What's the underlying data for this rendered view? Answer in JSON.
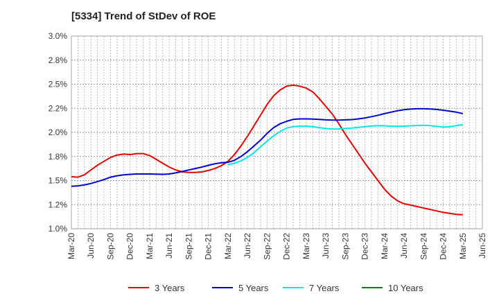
{
  "chart_data": {
    "type": "line",
    "title": "[5334]  Trend of StDev of ROE",
    "x_ticks": [
      "Mar-20",
      "Jun-20",
      "Sep-20",
      "Dec-20",
      "Mar-21",
      "Jun-21",
      "Sep-21",
      "Dec-21",
      "Mar-22",
      "Jun-22",
      "Sep-22",
      "Dec-22",
      "Mar-23",
      "Jun-23",
      "Sep-23",
      "Dec-23",
      "Mar-24",
      "Jun-24",
      "Sep-24",
      "Dec-24",
      "Mar-25",
      "Jun-25"
    ],
    "y_ticks": [
      "1.0%",
      "1.2%",
      "1.5%",
      "1.8%",
      "2.0%",
      "2.2%",
      "2.5%",
      "2.8%",
      "3.0%"
    ],
    "ylim": [
      1.0,
      3.0
    ],
    "grid": true,
    "legend_position": "bottom",
    "series": [
      {
        "name": "3 Years",
        "color": "#e60000",
        "points": [
          [
            "Mar-20",
            1.54
          ],
          [
            "Apr-20",
            1.535
          ],
          [
            "May-20",
            1.56
          ],
          [
            "Jun-20",
            1.61
          ],
          [
            "Jul-20",
            1.66
          ],
          [
            "Aug-20",
            1.7
          ],
          [
            "Sep-20",
            1.74
          ],
          [
            "Oct-20",
            1.765
          ],
          [
            "Nov-20",
            1.775
          ],
          [
            "Dec-20",
            1.77
          ],
          [
            "Jan-21",
            1.78
          ],
          [
            "Feb-21",
            1.78
          ],
          [
            "Mar-21",
            1.76
          ],
          [
            "Apr-21",
            1.72
          ],
          [
            "May-21",
            1.68
          ],
          [
            "Jun-21",
            1.64
          ],
          [
            "Jul-21",
            1.61
          ],
          [
            "Aug-21",
            1.59
          ],
          [
            "Sep-21",
            1.585
          ],
          [
            "Oct-21",
            1.585
          ],
          [
            "Nov-21",
            1.59
          ],
          [
            "Dec-21",
            1.605
          ],
          [
            "Jan-22",
            1.625
          ],
          [
            "Feb-22",
            1.655
          ],
          [
            "Mar-22",
            1.7
          ],
          [
            "Apr-22",
            1.77
          ],
          [
            "May-22",
            1.86
          ],
          [
            "Jun-22",
            1.96
          ],
          [
            "Jul-22",
            2.07
          ],
          [
            "Aug-22",
            2.18
          ],
          [
            "Sep-22",
            2.29
          ],
          [
            "Oct-22",
            2.38
          ],
          [
            "Nov-22",
            2.44
          ],
          [
            "Dec-22",
            2.48
          ],
          [
            "Jan-23",
            2.49
          ],
          [
            "Feb-23",
            2.48
          ],
          [
            "Mar-23",
            2.46
          ],
          [
            "Apr-23",
            2.42
          ],
          [
            "May-23",
            2.35
          ],
          [
            "Jun-23",
            2.27
          ],
          [
            "Jul-23",
            2.19
          ],
          [
            "Aug-23",
            2.09
          ],
          [
            "Sep-23",
            1.98
          ],
          [
            "Oct-23",
            1.88
          ],
          [
            "Nov-23",
            1.78
          ],
          [
            "Dec-23",
            1.68
          ],
          [
            "Jan-24",
            1.59
          ],
          [
            "Feb-24",
            1.5
          ],
          [
            "Mar-24",
            1.41
          ],
          [
            "Apr-24",
            1.34
          ],
          [
            "May-24",
            1.29
          ],
          [
            "Jun-24",
            1.26
          ],
          [
            "Jul-24",
            1.245
          ],
          [
            "Aug-24",
            1.23
          ],
          [
            "Sep-24",
            1.215
          ],
          [
            "Oct-24",
            1.2
          ],
          [
            "Nov-24",
            1.185
          ],
          [
            "Dec-24",
            1.17
          ],
          [
            "Jan-25",
            1.16
          ],
          [
            "Feb-25",
            1.15
          ],
          [
            "Mar-25",
            1.145
          ]
        ]
      },
      {
        "name": "5 Years",
        "color": "#0000cc",
        "points": [
          [
            "Mar-20",
            1.44
          ],
          [
            "Apr-20",
            1.445
          ],
          [
            "May-20",
            1.455
          ],
          [
            "Jun-20",
            1.47
          ],
          [
            "Jul-20",
            1.49
          ],
          [
            "Aug-20",
            1.51
          ],
          [
            "Sep-20",
            1.535
          ],
          [
            "Oct-20",
            1.55
          ],
          [
            "Nov-20",
            1.56
          ],
          [
            "Dec-20",
            1.565
          ],
          [
            "Jan-21",
            1.568
          ],
          [
            "Feb-21",
            1.568
          ],
          [
            "Mar-21",
            1.568
          ],
          [
            "Apr-21",
            1.566
          ],
          [
            "May-21",
            1.565
          ],
          [
            "Jun-21",
            1.568
          ],
          [
            "Jul-21",
            1.58
          ],
          [
            "Aug-21",
            1.595
          ],
          [
            "Sep-21",
            1.61
          ],
          [
            "Oct-21",
            1.625
          ],
          [
            "Nov-21",
            1.64
          ],
          [
            "Dec-21",
            1.658
          ],
          [
            "Jan-22",
            1.675
          ],
          [
            "Feb-22",
            1.685
          ],
          [
            "Mar-22",
            1.69
          ],
          [
            "Apr-22",
            1.71
          ],
          [
            "May-22",
            1.75
          ],
          [
            "Jun-22",
            1.8
          ],
          [
            "Jul-22",
            1.86
          ],
          [
            "Aug-22",
            1.92
          ],
          [
            "Sep-22",
            1.99
          ],
          [
            "Oct-22",
            2.05
          ],
          [
            "Nov-22",
            2.09
          ],
          [
            "Dec-22",
            2.115
          ],
          [
            "Jan-23",
            2.135
          ],
          [
            "Feb-23",
            2.14
          ],
          [
            "Mar-23",
            2.14
          ],
          [
            "Apr-23",
            2.138
          ],
          [
            "May-23",
            2.135
          ],
          [
            "Jun-23",
            2.13
          ],
          [
            "Jul-23",
            2.128
          ],
          [
            "Aug-23",
            2.128
          ],
          [
            "Sep-23",
            2.13
          ],
          [
            "Oct-23",
            2.133
          ],
          [
            "Nov-23",
            2.14
          ],
          [
            "Dec-23",
            2.15
          ],
          [
            "Jan-24",
            2.163
          ],
          [
            "Feb-24",
            2.178
          ],
          [
            "Mar-24",
            2.195
          ],
          [
            "Apr-24",
            2.21
          ],
          [
            "May-24",
            2.225
          ],
          [
            "Jun-24",
            2.235
          ],
          [
            "Jul-24",
            2.242
          ],
          [
            "Aug-24",
            2.245
          ],
          [
            "Sep-24",
            2.245
          ],
          [
            "Oct-24",
            2.243
          ],
          [
            "Nov-24",
            2.238
          ],
          [
            "Dec-24",
            2.23
          ],
          [
            "Jan-25",
            2.22
          ],
          [
            "Feb-25",
            2.21
          ],
          [
            "Mar-25",
            2.195
          ]
        ]
      },
      {
        "name": "7 Years",
        "color": "#00e5e5",
        "points": [
          [
            "Mar-22",
            1.665
          ],
          [
            "Apr-22",
            1.68
          ],
          [
            "May-22",
            1.705
          ],
          [
            "Jun-22",
            1.74
          ],
          [
            "Jul-22",
            1.79
          ],
          [
            "Aug-22",
            1.85
          ],
          [
            "Sep-22",
            1.91
          ],
          [
            "Oct-22",
            1.965
          ],
          [
            "Nov-22",
            2.01
          ],
          [
            "Dec-22",
            2.045
          ],
          [
            "Jan-23",
            2.06
          ],
          [
            "Feb-23",
            2.065
          ],
          [
            "Mar-23",
            2.065
          ],
          [
            "Apr-23",
            2.06
          ],
          [
            "May-23",
            2.05
          ],
          [
            "Jun-23",
            2.04
          ],
          [
            "Jul-23",
            2.035
          ],
          [
            "Aug-23",
            2.036
          ],
          [
            "Sep-23",
            2.04
          ],
          [
            "Oct-23",
            2.045
          ],
          [
            "Nov-23",
            2.052
          ],
          [
            "Dec-23",
            2.06
          ],
          [
            "Jan-24",
            2.066
          ],
          [
            "Feb-24",
            2.07
          ],
          [
            "Mar-24",
            2.068
          ],
          [
            "Apr-24",
            2.065
          ],
          [
            "May-24",
            2.063
          ],
          [
            "Jun-24",
            2.065
          ],
          [
            "Jul-24",
            2.068
          ],
          [
            "Aug-24",
            2.072
          ],
          [
            "Sep-24",
            2.074
          ],
          [
            "Oct-24",
            2.07
          ],
          [
            "Nov-24",
            2.062
          ],
          [
            "Dec-24",
            2.055
          ],
          [
            "Jan-25",
            2.058
          ],
          [
            "Feb-25",
            2.07
          ],
          [
            "Mar-25",
            2.08
          ]
        ]
      },
      {
        "name": "10 Years",
        "color": "#008000",
        "points": []
      }
    ]
  }
}
